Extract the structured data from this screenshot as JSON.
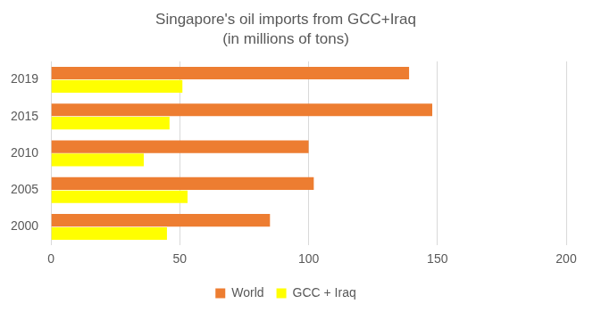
{
  "chart_data": {
    "type": "bar",
    "orientation": "horizontal",
    "title": "Singapore's oil imports from GCC+Iraq",
    "subtitle": "(in millions of tons)",
    "categories": [
      "2019",
      "2015",
      "2010",
      "2005",
      "2000"
    ],
    "series": [
      {
        "name": "World",
        "color": "#ed7d31",
        "values": [
          139,
          148,
          100,
          102,
          85
        ]
      },
      {
        "name": "GCC + Iraq",
        "color": "#ffff00",
        "values": [
          51,
          46,
          36,
          53,
          45
        ]
      }
    ],
    "xlim": [
      0,
      200
    ],
    "xticks": [
      0,
      50,
      100,
      150,
      200
    ],
    "grid": true,
    "legend": "bottom"
  }
}
